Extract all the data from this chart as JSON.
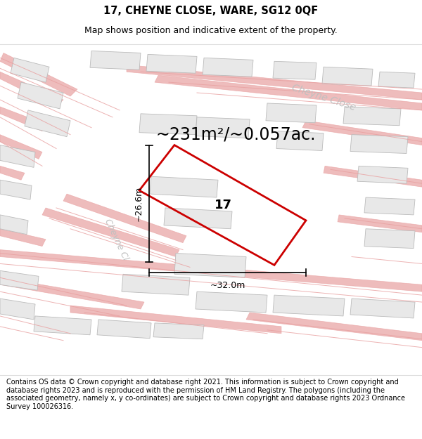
{
  "title_line1": "17, CHEYNE CLOSE, WARE, SG12 0QF",
  "title_line2": "Map shows position and indicative extent of the property.",
  "area_text": "~231m²/~0.057ac.",
  "number_label": "17",
  "dim_vertical": "~26.6m",
  "dim_horizontal": "~32.0m",
  "street_label_1": "Cheyne Close",
  "street_label_2": "Cheyne Cl",
  "footer_text": "Contains OS data © Crown copyright and database right 2021. This information is subject to Crown copyright and database rights 2023 and is reproduced with the permission of HM Land Registry. The polygons (including the associated geometry, namely x, y co-ordinates) are subject to Crown copyright and database rights 2023 Ordnance Survey 100026316.",
  "background_color": "#ffffff",
  "building_color": "#e8e8e8",
  "building_edge_color": "#bbbbbb",
  "road_line_color": "#e8a0a0",
  "property_edge_color": "#cc0000",
  "property_edge_width": 2.0,
  "title_fontsize": 10.5,
  "subtitle_fontsize": 9,
  "area_fontsize": 17,
  "label_fontsize": 13,
  "dim_fontsize": 9,
  "street_fontsize": 10,
  "footer_fontsize": 7
}
